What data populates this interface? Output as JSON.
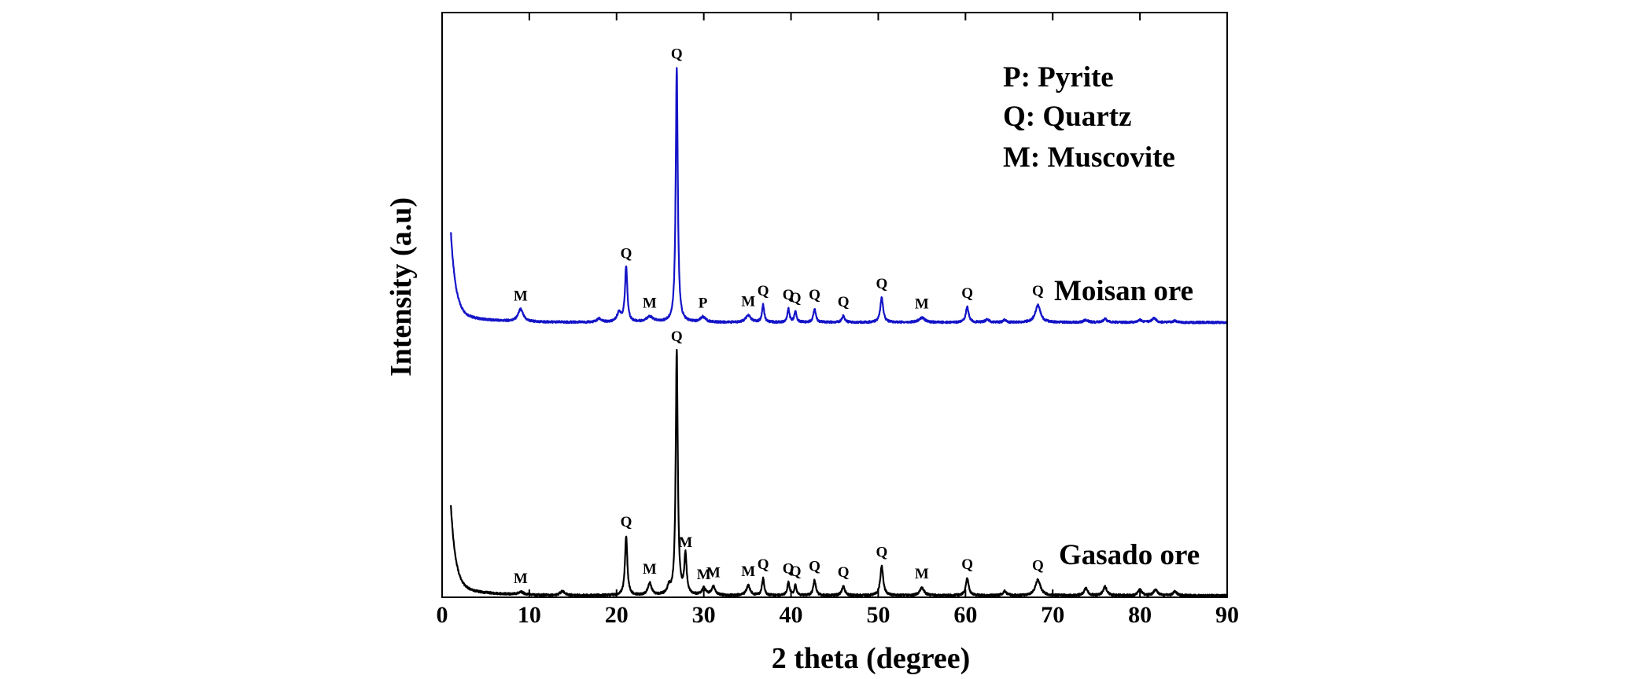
{
  "chart_data": {
    "type": "line",
    "xlabel": "2 theta (degree)",
    "ylabel": "Intensity (a.u)",
    "xlim": [
      0,
      90
    ],
    "xticks": [
      "0",
      "10",
      "20",
      "30",
      "40",
      "50",
      "60",
      "70",
      "80",
      "90"
    ],
    "ylim": [
      0,
      100
    ],
    "grid": false,
    "legend": {
      "placement": "top-right",
      "entries": [
        "P: Pyrite",
        "Q: Quartz",
        "M: Muscovite"
      ]
    },
    "series": [
      {
        "name": "Moisan ore",
        "color": "#1414c8",
        "baseline": 47,
        "peaks": [
          {
            "x": 9.0,
            "y": 49.1,
            "w": 0.35,
            "label": "M"
          },
          {
            "x": 18.0,
            "y": 47.6,
            "w": 0.3
          },
          {
            "x": 20.3,
            "y": 48.6,
            "w": 0.3
          },
          {
            "x": 21.1,
            "y": 56.4,
            "w": 0.16,
            "label": "Q"
          },
          {
            "x": 23.8,
            "y": 47.9,
            "w": 0.5,
            "label": "M"
          },
          {
            "x": 26.9,
            "y": 90.5,
            "w": 0.14,
            "label": "Q"
          },
          {
            "x": 29.9,
            "y": 47.9,
            "w": 0.35,
            "label": "P"
          },
          {
            "x": 35.1,
            "y": 48.2,
            "w": 0.35,
            "label": "M"
          },
          {
            "x": 36.8,
            "y": 50.0,
            "w": 0.15,
            "label": "Q"
          },
          {
            "x": 39.7,
            "y": 49.3,
            "w": 0.15,
            "label": "Q"
          },
          {
            "x": 40.5,
            "y": 48.8,
            "w": 0.15,
            "label": "Q"
          },
          {
            "x": 42.7,
            "y": 49.3,
            "w": 0.17,
            "label": "Q"
          },
          {
            "x": 46.0,
            "y": 48.1,
            "w": 0.2,
            "label": "Q"
          },
          {
            "x": 50.4,
            "y": 51.2,
            "w": 0.2,
            "label": "Q"
          },
          {
            "x": 55.0,
            "y": 47.8,
            "w": 0.4,
            "label": "M"
          },
          {
            "x": 60.2,
            "y": 49.6,
            "w": 0.2,
            "label": "Q"
          },
          {
            "x": 62.5,
            "y": 47.5,
            "w": 0.25
          },
          {
            "x": 64.5,
            "y": 47.4,
            "w": 0.2
          },
          {
            "x": 68.3,
            "y": 50.0,
            "w": 0.35,
            "label": "Q"
          },
          {
            "x": 73.8,
            "y": 47.4,
            "w": 0.3
          },
          {
            "x": 76.0,
            "y": 47.6,
            "w": 0.25
          },
          {
            "x": 80.0,
            "y": 47.4,
            "w": 0.3
          },
          {
            "x": 81.6,
            "y": 47.7,
            "w": 0.3
          },
          {
            "x": 84.0,
            "y": 47.3,
            "w": 0.25
          }
        ]
      },
      {
        "name": "Gasado ore",
        "color": "#000000",
        "baseline": 0.3,
        "peaks": [
          {
            "x": 9.0,
            "y": 0.8,
            "w": 0.35,
            "label": "M"
          },
          {
            "x": 13.8,
            "y": 1.0,
            "w": 0.3
          },
          {
            "x": 21.1,
            "y": 10.5,
            "w": 0.16,
            "label": "Q"
          },
          {
            "x": 23.8,
            "y": 2.4,
            "w": 0.25,
            "label": "M"
          },
          {
            "x": 26.0,
            "y": 1.6,
            "w": 0.2
          },
          {
            "x": 26.9,
            "y": 42.2,
            "w": 0.14,
            "label": "Q"
          },
          {
            "x": 27.9,
            "y": 7.0,
            "w": 0.16,
            "label": "M"
          },
          {
            "x": 30.0,
            "y": 1.5,
            "w": 0.25,
            "label": "M"
          },
          {
            "x": 31.1,
            "y": 1.8,
            "w": 0.25,
            "label": "M"
          },
          {
            "x": 35.1,
            "y": 2.0,
            "w": 0.25,
            "label": "M"
          },
          {
            "x": 36.8,
            "y": 3.2,
            "w": 0.15,
            "label": "Q"
          },
          {
            "x": 39.7,
            "y": 2.5,
            "w": 0.15,
            "label": "Q"
          },
          {
            "x": 40.5,
            "y": 2.0,
            "w": 0.15,
            "label": "Q"
          },
          {
            "x": 42.7,
            "y": 2.9,
            "w": 0.17,
            "label": "Q"
          },
          {
            "x": 46.0,
            "y": 1.9,
            "w": 0.2,
            "label": "Q"
          },
          {
            "x": 50.4,
            "y": 5.3,
            "w": 0.2,
            "label": "Q"
          },
          {
            "x": 55.0,
            "y": 1.6,
            "w": 0.3,
            "label": "M"
          },
          {
            "x": 60.2,
            "y": 3.2,
            "w": 0.2,
            "label": "Q"
          },
          {
            "x": 64.5,
            "y": 1.0,
            "w": 0.25
          },
          {
            "x": 68.3,
            "y": 3.0,
            "w": 0.35,
            "label": "Q"
          },
          {
            "x": 73.8,
            "y": 1.5,
            "w": 0.25
          },
          {
            "x": 76.0,
            "y": 1.8,
            "w": 0.25
          },
          {
            "x": 80.0,
            "y": 1.3,
            "w": 0.25
          },
          {
            "x": 81.8,
            "y": 1.3,
            "w": 0.25
          },
          {
            "x": 84.0,
            "y": 1.0,
            "w": 0.25
          }
        ]
      }
    ]
  }
}
